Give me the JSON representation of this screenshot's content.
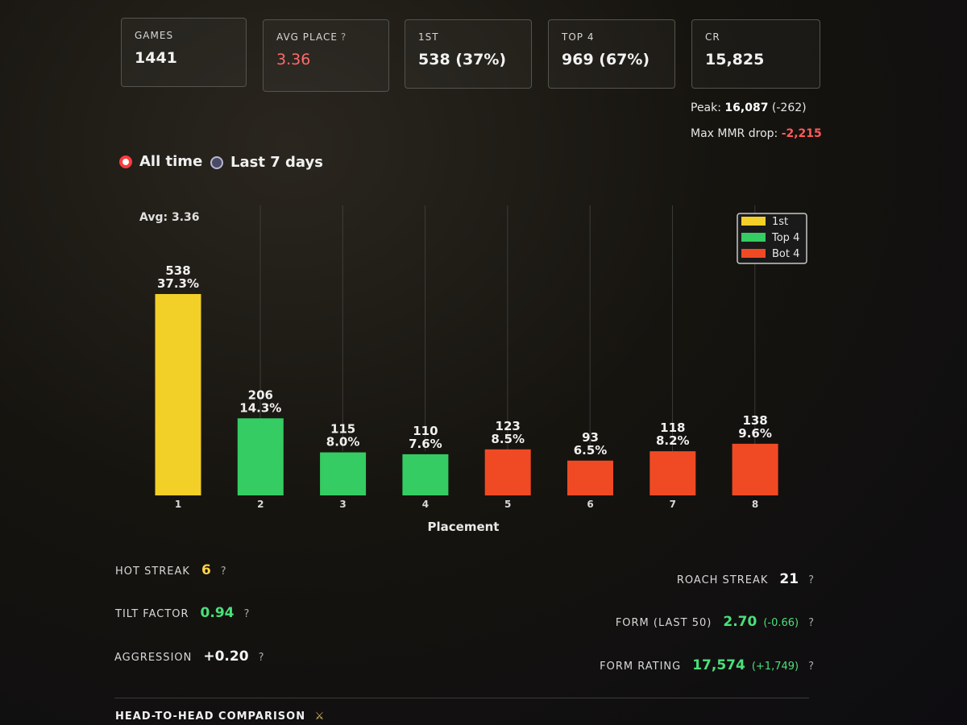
{
  "stats": [
    {
      "label": "GAMES",
      "value": "1441",
      "help": false,
      "color": "#f2f2f2"
    },
    {
      "label": "AVG PLACE",
      "value": "3.36",
      "help": true,
      "color": "#ff6b6b"
    },
    {
      "label": "1ST",
      "value": "538 (37%)",
      "help": false,
      "color": "#f2f2f2"
    },
    {
      "label": "TOP 4",
      "value": "969 (67%)",
      "help": false,
      "color": "#f2f2f2"
    },
    {
      "label": "CR",
      "value": "15,825",
      "help": false,
      "color": "#f2f2f2"
    }
  ],
  "peak": {
    "label": "Peak:",
    "value": "16,087",
    "delta": "(-262)"
  },
  "max_drop": {
    "label": "Max MMR drop:",
    "value": "-2,215"
  },
  "time_filter": {
    "options": [
      "All time",
      "Last 7 days"
    ],
    "selected": "All time"
  },
  "chart_data": {
    "type": "bar",
    "title": "",
    "annotation": "Avg: 3.36",
    "xlabel": "Placement",
    "ylabel": "",
    "categories": [
      "1",
      "2",
      "3",
      "4",
      "5",
      "6",
      "7",
      "8"
    ],
    "values": [
      538,
      206,
      115,
      110,
      123,
      93,
      118,
      138
    ],
    "percents": [
      "37.3%",
      "14.3%",
      "8.0%",
      "7.6%",
      "8.5%",
      "6.5%",
      "8.2%",
      "9.6%"
    ],
    "groups": [
      "1st",
      "Top 4",
      "Top 4",
      "Top 4",
      "Bot 4",
      "Bot 4",
      "Bot 4",
      "Bot 4"
    ],
    "legend": [
      {
        "label": "1st",
        "color": "#f2d027"
      },
      {
        "label": "Top 4",
        "color": "#35cc63"
      },
      {
        "label": "Bot 4",
        "color": "#f04a24"
      }
    ],
    "legend_position": "top-right",
    "ylim": [
      0,
      538
    ]
  },
  "metrics_left": [
    {
      "label": "HOT STREAK",
      "value": "6",
      "color": "yellow"
    },
    {
      "label": "TILT FACTOR",
      "value": "0.94",
      "color": "green"
    },
    {
      "label": "AGGRESSION",
      "value": "+0.20",
      "color": "white"
    }
  ],
  "metrics_right": [
    {
      "label": "ROACH STREAK",
      "value": "21",
      "delta": "",
      "color": "white"
    },
    {
      "label": "FORM (LAST 50)",
      "value": "2.70",
      "delta": "(-0.66)",
      "color": "green"
    },
    {
      "label": "FORM RATING",
      "value": "17,574",
      "delta": "(+1,749)",
      "color": "green"
    }
  ],
  "help_symbol": "?",
  "section_title": "HEAD-TO-HEAD COMPARISON",
  "section_icon": "crossed-swords-icon"
}
